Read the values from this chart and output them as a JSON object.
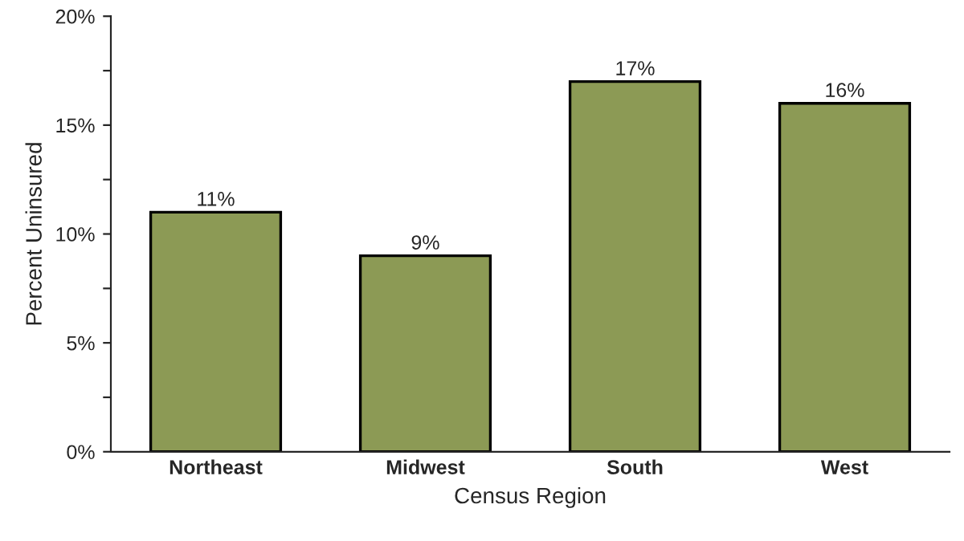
{
  "chart_data": {
    "type": "bar",
    "xlabel": "Census Region",
    "ylabel": "Percent Uninsured",
    "categories": [
      "Northeast",
      "Midwest",
      "South",
      "West"
    ],
    "values": [
      11,
      9,
      17,
      16
    ],
    "value_labels": [
      "11%",
      "9%",
      "17%",
      "16%"
    ],
    "color": "#8c9a55",
    "ylim": [
      0,
      20
    ],
    "yticks": [
      {
        "value": 0,
        "label": "0%"
      },
      {
        "value": 2.5,
        "label": null
      },
      {
        "value": 5,
        "label": "5%"
      },
      {
        "value": 7.5,
        "label": null
      },
      {
        "value": 10,
        "label": "10%"
      },
      {
        "value": 12.5,
        "label": null
      },
      {
        "value": 15,
        "label": "15%"
      },
      {
        "value": 17.5,
        "label": null
      },
      {
        "value": 20,
        "label": "20%"
      }
    ],
    "grid": false
  }
}
